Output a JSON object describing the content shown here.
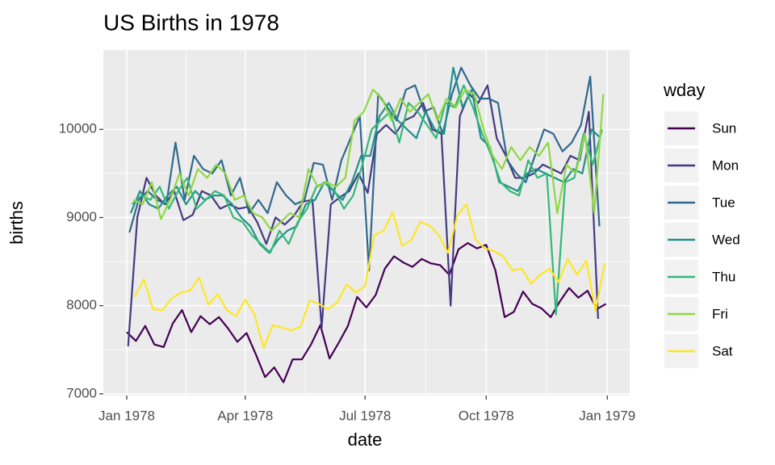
{
  "chart_data": {
    "type": "line",
    "title": "US Births in 1978",
    "x_label": "date",
    "y_label": "births",
    "legend_title": "wday",
    "xlim": [
      -17.8,
      382
    ],
    "ylim": [
      6980,
      10900
    ],
    "xticks": [
      {
        "value": 0,
        "label": "Jan 1978"
      },
      {
        "value": 90,
        "label": "Apr 1978"
      },
      {
        "value": 181,
        "label": "Jul 1978"
      },
      {
        "value": 273,
        "label": "Oct 1978"
      },
      {
        "value": 365,
        "label": "Jan 1979"
      }
    ],
    "yticks": [
      7000,
      8000,
      9000,
      10000
    ],
    "grid": true,
    "legend": "right",
    "series": [
      {
        "name": "Sun",
        "color": "#440154",
        "x": [
          0,
          7,
          14,
          21,
          28,
          35,
          42,
          49,
          56,
          63,
          70,
          77,
          84,
          91,
          98,
          105,
          112,
          119,
          126,
          133,
          140,
          147,
          154,
          161,
          168,
          175,
          182,
          189,
          196,
          203,
          210,
          217,
          224,
          231,
          238,
          245,
          252,
          259,
          266,
          273,
          280,
          287,
          294,
          301,
          308,
          315,
          322,
          329,
          336,
          343,
          350,
          357,
          364
        ],
        "values": [
          7700,
          7600,
          7770,
          7560,
          7530,
          7800,
          7950,
          7700,
          7880,
          7790,
          7870,
          7740,
          7590,
          7690,
          7450,
          7190,
          7300,
          7130,
          7390,
          7390,
          7560,
          7780,
          7400,
          7580,
          7770,
          8100,
          7980,
          8120,
          8420,
          8560,
          8490,
          8440,
          8530,
          8480,
          8460,
          8350,
          8640,
          8710,
          8650,
          8690,
          8400,
          7870,
          7930,
          8160,
          8020,
          7970,
          7870,
          8050,
          8200,
          8090,
          8170,
          7960,
          8020
        ]
      },
      {
        "name": "Mon",
        "color": "#443A83",
        "x": [
          1,
          8,
          15,
          22,
          29,
          36,
          43,
          50,
          57,
          64,
          71,
          78,
          85,
          92,
          99,
          106,
          113,
          120,
          127,
          134,
          141,
          148,
          155,
          162,
          169,
          176,
          183,
          190,
          197,
          204,
          211,
          218,
          225,
          232,
          239,
          246,
          253,
          260,
          267,
          274,
          281,
          288,
          295,
          302,
          309,
          316,
          323,
          330,
          337,
          344,
          351,
          358
        ],
        "values": [
          7540,
          9000,
          9450,
          9250,
          9150,
          9300,
          8970,
          9030,
          9300,
          9250,
          9100,
          9150,
          9100,
          9120,
          8950,
          8700,
          9000,
          8920,
          9020,
          9180,
          9200,
          7750,
          9150,
          9230,
          9300,
          9500,
          9280,
          9950,
          10050,
          9950,
          10100,
          10150,
          10300,
          10000,
          9950,
          8000,
          10150,
          10400,
          10300,
          10500,
          9900,
          9700,
          9450,
          9450,
          9500,
          9600,
          9550,
          9500,
          9700,
          9650,
          10200,
          7850
        ]
      },
      {
        "name": "Tue",
        "color": "#31688E",
        "x": [
          2,
          9,
          16,
          23,
          30,
          37,
          44,
          51,
          58,
          65,
          72,
          79,
          86,
          93,
          100,
          107,
          114,
          121,
          128,
          135,
          142,
          149,
          156,
          163,
          170,
          177,
          184,
          191,
          198,
          205,
          212,
          219,
          226,
          233,
          240,
          247,
          254,
          261,
          268,
          275,
          282,
          289,
          296,
          303,
          310,
          317,
          324,
          331,
          338,
          345,
          352,
          359
        ],
        "values": [
          8830,
          9200,
          9300,
          9200,
          9150,
          9850,
          9200,
          9700,
          9550,
          9500,
          9650,
          9250,
          9450,
          9050,
          9200,
          9050,
          9400,
          9250,
          9150,
          9200,
          9620,
          9600,
          9200,
          9650,
          9900,
          10150,
          8400,
          10400,
          10250,
          10100,
          10450,
          10500,
          10200,
          10250,
          9950,
          10400,
          10700,
          10500,
          10350,
          10350,
          10300,
          9650,
          9500,
          9400,
          9700,
          10000,
          9950,
          9750,
          9850,
          10050,
          10600,
          8900
        ]
      },
      {
        "name": "Wed",
        "color": "#21908C",
        "x": [
          3,
          10,
          17,
          24,
          31,
          38,
          45,
          52,
          59,
          66,
          73,
          80,
          87,
          94,
          101,
          108,
          115,
          122,
          129,
          136,
          143,
          150,
          157,
          164,
          171,
          178,
          185,
          192,
          199,
          206,
          213,
          220,
          227,
          234,
          241,
          248,
          255,
          262,
          269,
          276,
          283,
          290,
          297,
          304,
          311,
          318,
          325,
          332,
          339,
          346,
          353,
          360
        ],
        "values": [
          9050,
          9300,
          9150,
          9100,
          9250,
          9350,
          9150,
          9300,
          9200,
          9250,
          9250,
          9150,
          9000,
          8900,
          8700,
          8600,
          8750,
          8850,
          8900,
          9150,
          9200,
          9400,
          9300,
          9200,
          9400,
          9700,
          9700,
          10150,
          10300,
          10100,
          10000,
          9900,
          10200,
          10000,
          9950,
          10700,
          10250,
          10450,
          9900,
          9800,
          9400,
          9350,
          9300,
          9500,
          9550,
          9500,
          9450,
          9400,
          9550,
          9500,
          10000,
          9900
        ]
      },
      {
        "name": "Thu",
        "color": "#35B779",
        "x": [
          4,
          11,
          18,
          25,
          32,
          39,
          46,
          53,
          60,
          67,
          74,
          81,
          88,
          95,
          102,
          109,
          116,
          123,
          130,
          137,
          144,
          151,
          158,
          165,
          172,
          179,
          186,
          193,
          200,
          207,
          214,
          221,
          228,
          235,
          242,
          249,
          256,
          263,
          270,
          277,
          284,
          291,
          298,
          305,
          312,
          319,
          326,
          333,
          340,
          347,
          354,
          361
        ],
        "values": [
          9150,
          9250,
          9200,
          9350,
          9100,
          9300,
          9450,
          9100,
          9200,
          9300,
          9250,
          9000,
          8950,
          8800,
          8700,
          8600,
          8850,
          8700,
          8950,
          9100,
          9350,
          9400,
          9300,
          9100,
          9250,
          9600,
          10000,
          10100,
          10200,
          9850,
          10300,
          10200,
          10050,
          9900,
          10300,
          10250,
          10500,
          10250,
          9950,
          9700,
          9400,
          9300,
          9250,
          9650,
          9450,
          9500,
          7900,
          9400,
          9450,
          9950,
          9600,
          10000
        ]
      },
      {
        "name": "Fri",
        "color": "#8FD744",
        "x": [
          5,
          12,
          19,
          26,
          33,
          40,
          47,
          54,
          61,
          68,
          75,
          82,
          89,
          96,
          103,
          110,
          117,
          124,
          131,
          138,
          145,
          152,
          159,
          166,
          173,
          180,
          187,
          194,
          201,
          208,
          215,
          222,
          229,
          236,
          243,
          250,
          257,
          264,
          271,
          278,
          285,
          292,
          299,
          306,
          313,
          320,
          327,
          334,
          341,
          348,
          355,
          362
        ],
        "values": [
          9200,
          9150,
          9400,
          8980,
          9200,
          9500,
          9250,
          9550,
          9450,
          9600,
          9500,
          9200,
          9250,
          9050,
          9000,
          8850,
          8950,
          9050,
          9000,
          9550,
          9350,
          9400,
          9350,
          9450,
          10100,
          10200,
          10450,
          10350,
          10100,
          10350,
          10200,
          10300,
          10400,
          10100,
          10350,
          10250,
          10450,
          10400,
          10000,
          9700,
          9550,
          9800,
          9650,
          9800,
          9700,
          9850,
          9050,
          9600,
          9500,
          9950,
          9050,
          10400
        ]
      },
      {
        "name": "Sat",
        "color": "#FDE725",
        "x": [
          6,
          13,
          20,
          27,
          34,
          41,
          48,
          55,
          62,
          69,
          76,
          83,
          90,
          97,
          104,
          111,
          118,
          125,
          132,
          139,
          146,
          153,
          160,
          167,
          174,
          181,
          188,
          195,
          202,
          209,
          216,
          223,
          230,
          237,
          244,
          251,
          258,
          265,
          272,
          279,
          286,
          293,
          300,
          307,
          314,
          321,
          328,
          335,
          342,
          349,
          356,
          363
        ],
        "values": [
          8100,
          8300,
          7960,
          7950,
          8080,
          8150,
          8170,
          8320,
          8010,
          8130,
          7950,
          7880,
          8070,
          7900,
          7520,
          7780,
          7750,
          7720,
          7760,
          8060,
          8020,
          7960,
          8040,
          8240,
          8150,
          8220,
          8800,
          8850,
          9060,
          8680,
          8740,
          8950,
          8910,
          8800,
          8600,
          9020,
          9150,
          8750,
          8650,
          8620,
          8560,
          8400,
          8420,
          8250,
          8350,
          8420,
          8270,
          8530,
          8350,
          8510,
          7940,
          8480
        ]
      }
    ]
  }
}
